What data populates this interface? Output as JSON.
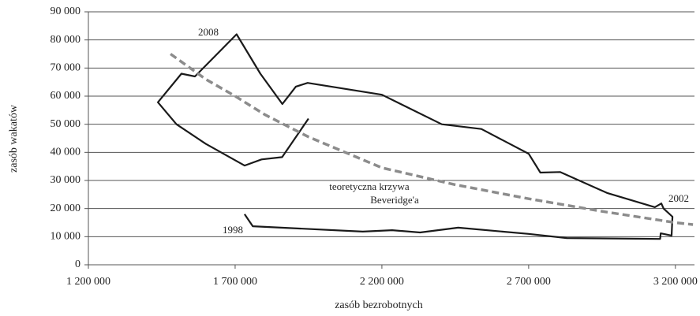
{
  "chart_data": {
    "type": "line",
    "x_label": "zasób bezrobotnych",
    "y_label": "zasób wakatów",
    "xlim": [
      1200000,
      3265000
    ],
    "ylim": [
      0,
      90000
    ],
    "xticks": [
      {
        "value": 1200000,
        "label": "1 200 000"
      },
      {
        "value": 1700000,
        "label": "1 700 000"
      },
      {
        "value": 2200000,
        "label": "2 200 000"
      },
      {
        "value": 2700000,
        "label": "2 700 000"
      },
      {
        "value": 3200000,
        "label": "3 200 000"
      }
    ],
    "yticks": [
      0,
      {
        "value": 10000,
        "label": "10 000"
      },
      {
        "value": 20000,
        "label": "20 000"
      },
      {
        "value": 30000,
        "label": "30 000"
      },
      {
        "value": 40000,
        "label": "40 000"
      },
      {
        "value": 50000,
        "label": "50 000"
      },
      {
        "value": 60000,
        "label": "60 000"
      },
      {
        "value": 70000,
        "label": "70 000"
      },
      {
        "value": 80000,
        "label": "80 000"
      },
      {
        "value": 90000,
        "label": "90 000"
      }
    ],
    "grid": true,
    "series": [
      {
        "color": "#1a1a1a",
        "dashed": false,
        "x": [
          1732000,
          1760000,
          2135000,
          2235000,
          2330000,
          2460000,
          2700000,
          2830000,
          3148000,
          3150000,
          3187000,
          3190000,
          3160000,
          3152000,
          3130000,
          2969000,
          2807000,
          2740000,
          2700000,
          2539000,
          2404000,
          2200000,
          1947000,
          1907000,
          1861000,
          1786000,
          1705000,
          1563000,
          1517000,
          1437000,
          1500000,
          1600000,
          1732000,
          1790000,
          1860000,
          1950000
        ],
        "y": [
          18000,
          13700,
          11800,
          12300,
          11500,
          13200,
          11000,
          9500,
          9200,
          11200,
          10400,
          17100,
          20000,
          21800,
          20500,
          25500,
          33000,
          32800,
          39500,
          48300,
          50000,
          60500,
          64700,
          63400,
          57200,
          68000,
          82000,
          67000,
          68000,
          57800,
          50000,
          43000,
          35300,
          37500,
          38300,
          52000
        ]
      },
      {
        "color": "#8c8c8c",
        "dashed": true,
        "x": [
          1480000,
          1600000,
          1700000,
          1800000,
          1950000,
          2200000,
          2450000,
          2700000,
          2950000,
          3200000,
          3260000
        ],
        "y": [
          75000,
          66000,
          60000,
          53500,
          45500,
          34500,
          28500,
          23500,
          19000,
          15000,
          14300
        ]
      }
    ],
    "annotations": [
      "2008",
      "1998",
      "2002",
      "teoretyczna krzywa",
      "Beveridge'a"
    ]
  }
}
